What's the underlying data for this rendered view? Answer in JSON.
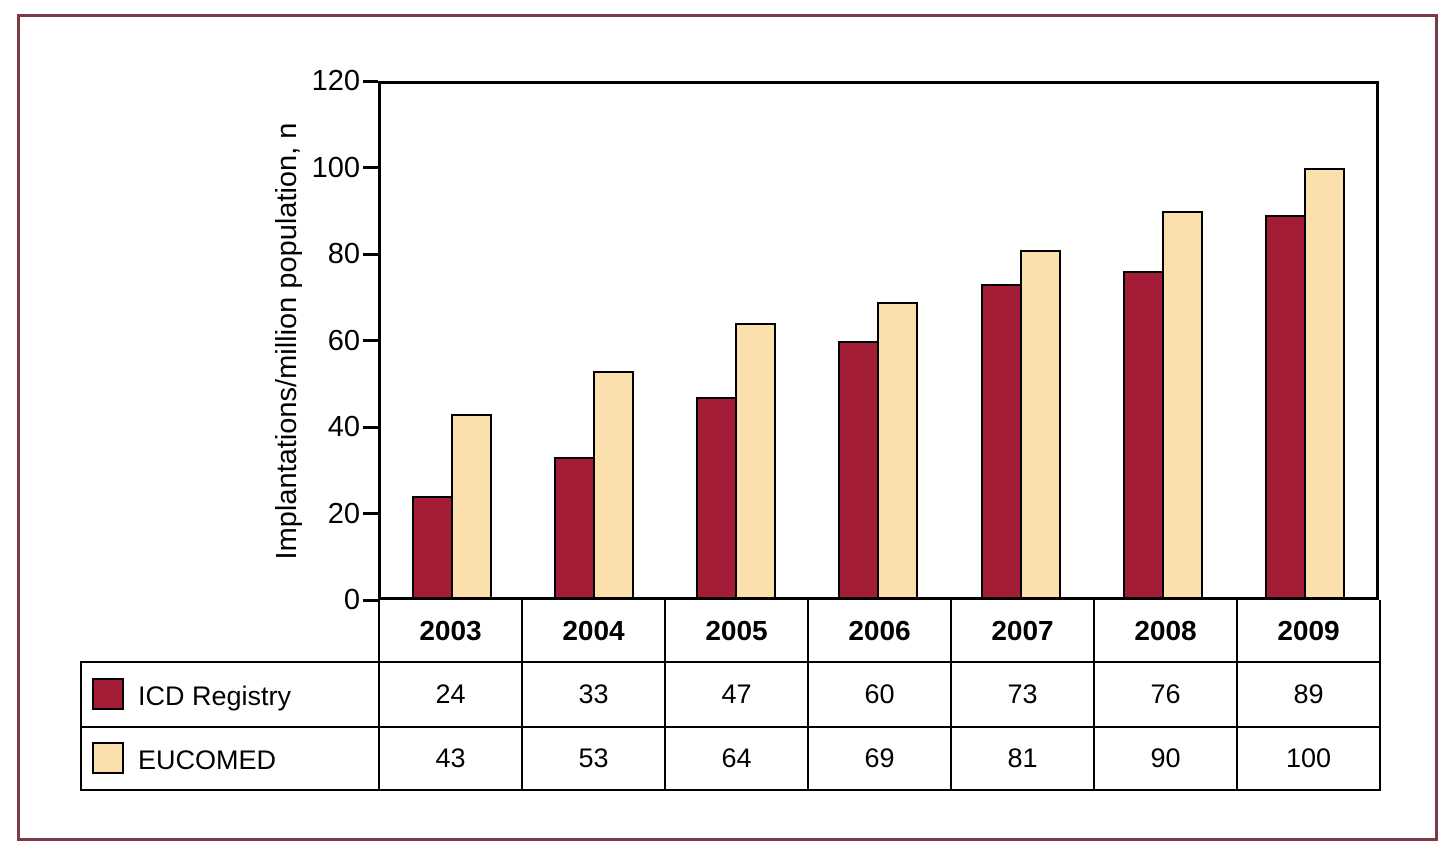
{
  "figure": {
    "background": "#ffffff",
    "frame_color": "#7c3946",
    "axis_color": "#000000"
  },
  "chart_data": {
    "type": "bar",
    "title": "",
    "xlabel": "",
    "ylabel": "Implantations/million population, n",
    "ylim": [
      0,
      120
    ],
    "yticks": [
      0,
      20,
      40,
      60,
      80,
      100,
      120
    ],
    "grid": false,
    "legend_position": "table-rows-left",
    "categories": [
      "2003",
      "2004",
      "2005",
      "2006",
      "2007",
      "2008",
      "2009"
    ],
    "series": [
      {
        "name": "ICD Registry",
        "color": "#a21d35",
        "values": [
          24,
          33,
          47,
          60,
          73,
          76,
          89
        ]
      },
      {
        "name": "EUCOMED",
        "color": "#fbdfac",
        "values": [
          43,
          53,
          64,
          69,
          81,
          90,
          100
        ]
      }
    ]
  }
}
